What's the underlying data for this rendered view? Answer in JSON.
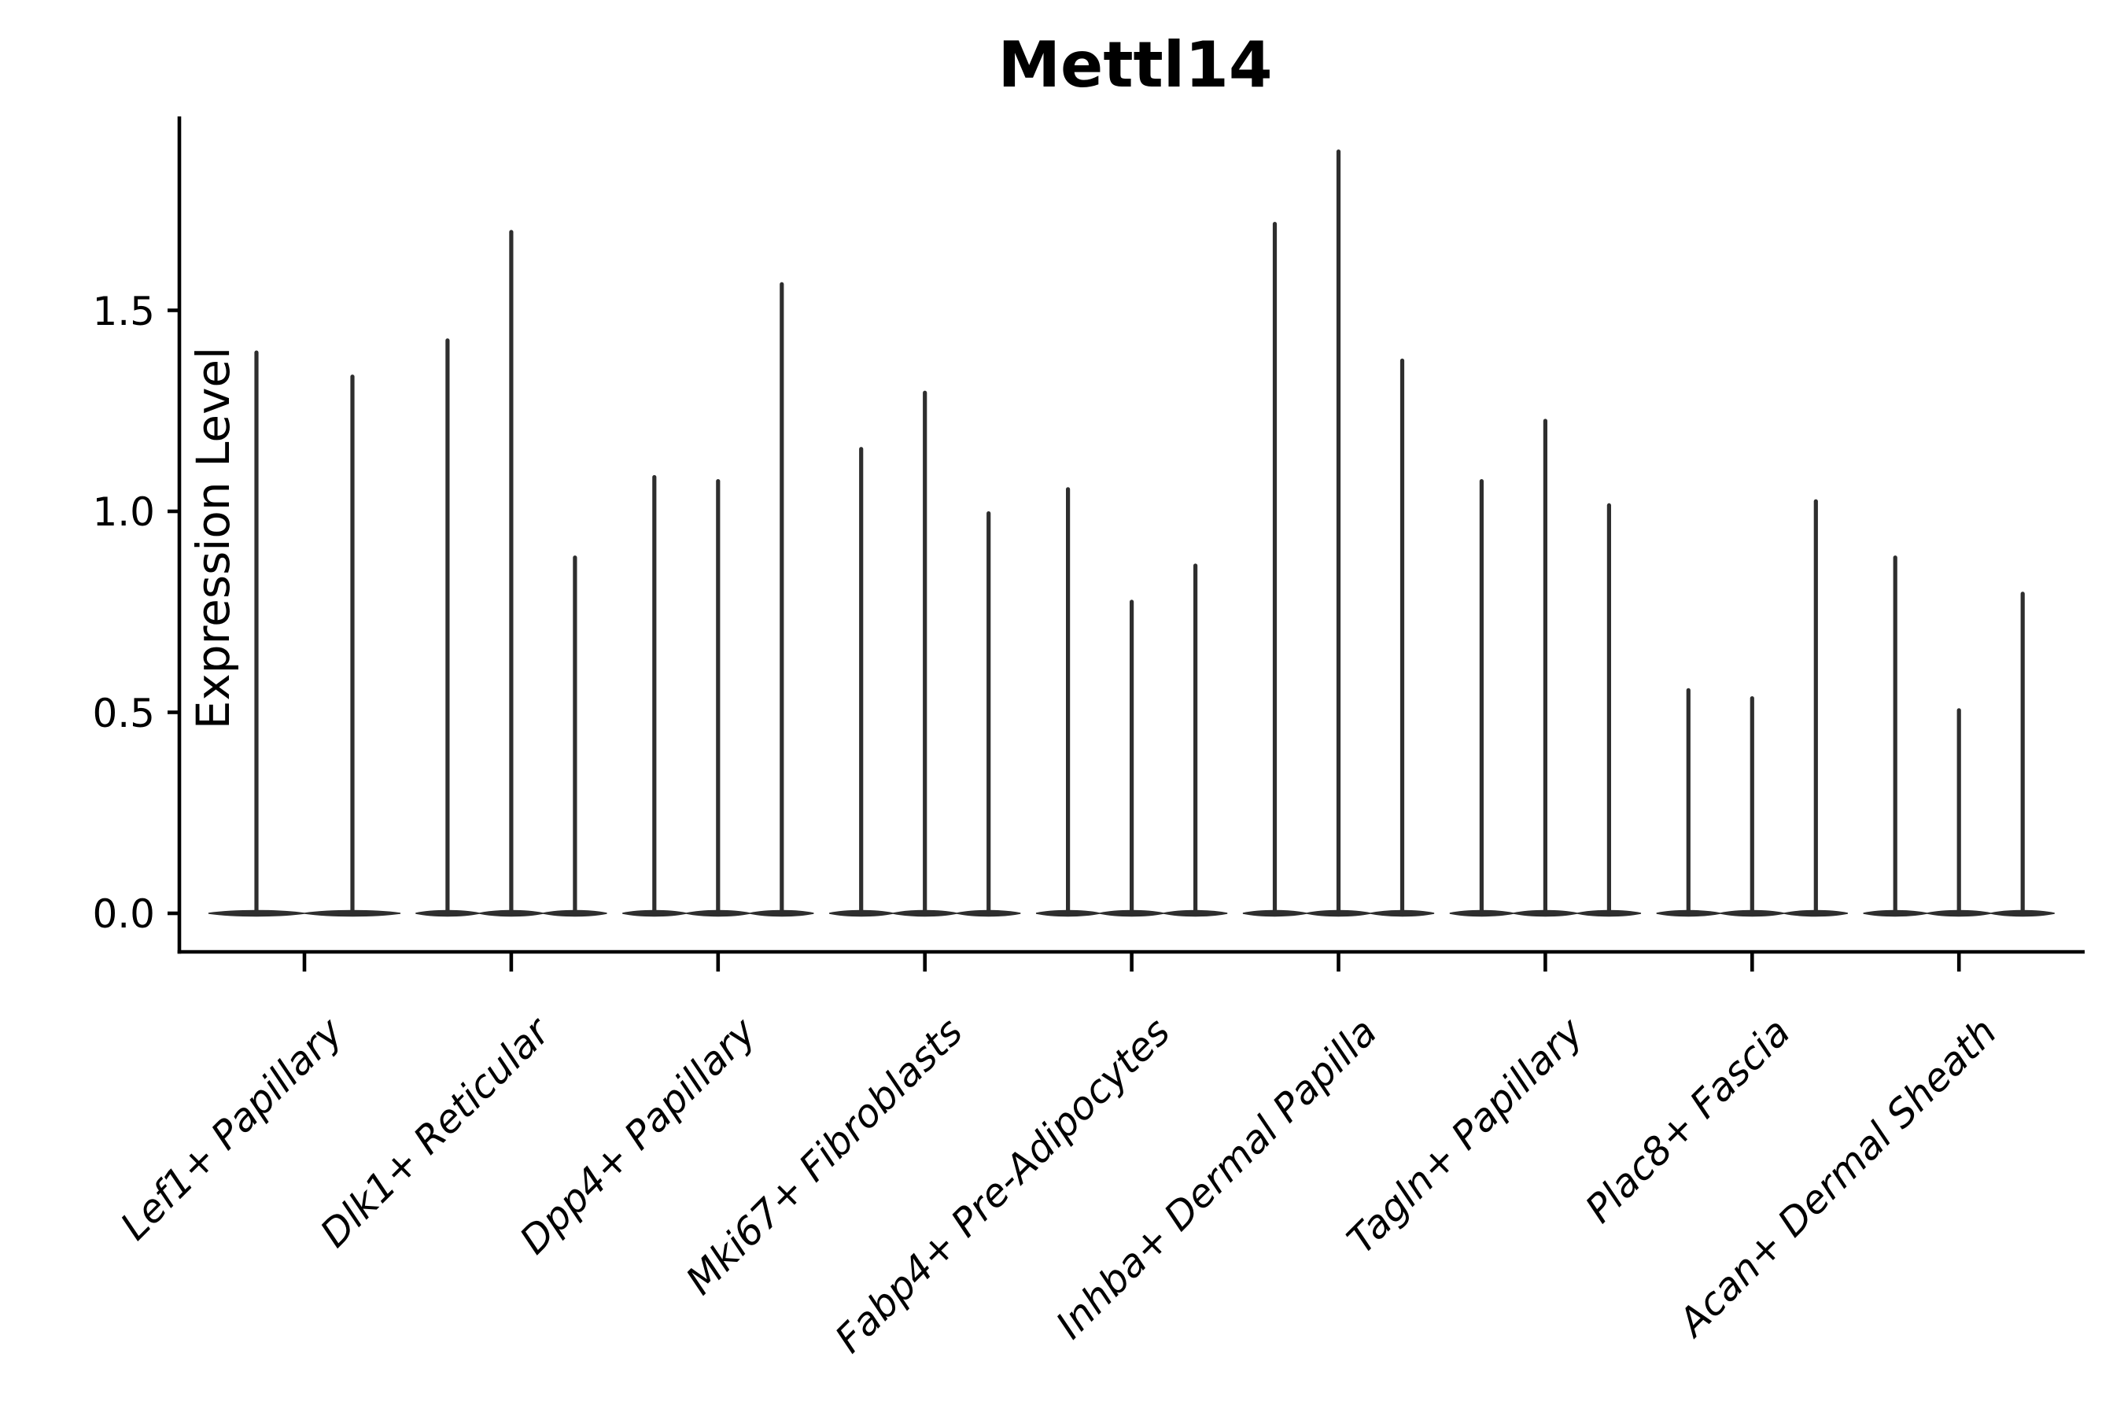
{
  "chart_data": {
    "type": "violin",
    "title": "Mettl14",
    "ylabel": "Expression Level",
    "xlabel": "",
    "grid": false,
    "legend_position": "none",
    "ylim": [
      0,
      1.98
    ],
    "ytick_values": [
      0.0,
      0.5,
      1.0,
      1.5
    ],
    "ytick_labels": [
      "0.0",
      "0.5",
      "1.0",
      "1.5"
    ],
    "violin_style": "thin-spike-wide-base",
    "violin_color": "#2e2e2e",
    "axis_color": "#000000",
    "categories": [
      "Lef1+ Papillary",
      "Dlk1+ Reticular",
      "Dpp4+ Papillary",
      "Mki67+ Fibroblasts",
      "Fabp4+ Pre-Adipocytes",
      "Inhba+ Dermal Papilla",
      "Tagln+ Papillary",
      "Plac8+ Fascia",
      "Acan+ Dermal Sheath"
    ],
    "groups": [
      {
        "label": "Lef1+ Papillary",
        "violin_peaks": [
          1.4,
          1.34
        ]
      },
      {
        "label": "Dlk1+ Reticular",
        "violin_peaks": [
          1.43,
          1.7,
          0.89
        ]
      },
      {
        "label": "Dpp4+ Papillary",
        "violin_peaks": [
          1.09,
          1.08,
          1.57
        ]
      },
      {
        "label": "Mki67+ Fibroblasts",
        "violin_peaks": [
          1.16,
          1.3,
          1.0
        ]
      },
      {
        "label": "Fabp4+ Pre-Adipocytes",
        "violin_peaks": [
          1.06,
          0.78,
          0.87
        ]
      },
      {
        "label": "Inhba+ Dermal Papilla",
        "violin_peaks": [
          1.72,
          1.9,
          1.38
        ]
      },
      {
        "label": "Tagln+ Papillary",
        "violin_peaks": [
          1.08,
          1.23,
          1.02
        ]
      },
      {
        "label": "Plac8+ Fascia",
        "violin_peaks": [
          0.56,
          0.54,
          1.03
        ]
      },
      {
        "label": "Acan+ Dermal Sheath",
        "violin_peaks": [
          0.89,
          0.51,
          0.8
        ]
      }
    ]
  }
}
